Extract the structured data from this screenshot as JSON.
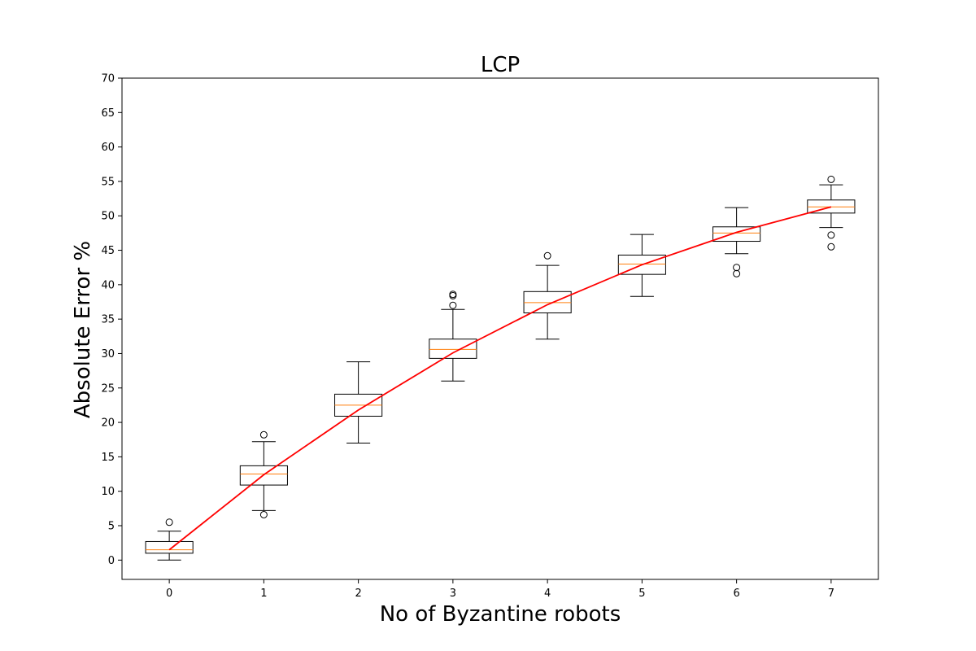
{
  "chart_data": {
    "type": "box",
    "title": "LCP",
    "xlabel": "No of Byzantine robots",
    "ylabel": "Absolute Error %",
    "categories": [
      "0",
      "1",
      "2",
      "3",
      "4",
      "5",
      "6",
      "7"
    ],
    "ylim": [
      -2.8,
      70
    ],
    "yticks": [
      0,
      5,
      10,
      15,
      20,
      25,
      30,
      35,
      40,
      45,
      50,
      55,
      60,
      65,
      70
    ],
    "ytick_labels": [
      "0",
      "5",
      "10",
      "15",
      "20",
      "25",
      "30",
      "35",
      "40",
      "45",
      "50",
      "55",
      "60",
      "65",
      "70"
    ],
    "grid": false,
    "boxes": [
      {
        "x": "0",
        "whisker_low": 0.0,
        "q1": 1.0,
        "median": 1.5,
        "q3": 2.7,
        "whisker_high": 4.2,
        "outliers": [
          5.5
        ]
      },
      {
        "x": "1",
        "whisker_low": 7.2,
        "q1": 10.9,
        "median": 12.5,
        "q3": 13.7,
        "whisker_high": 17.2,
        "outliers": [
          18.2,
          6.6
        ]
      },
      {
        "x": "2",
        "whisker_low": 17.0,
        "q1": 20.9,
        "median": 22.5,
        "q3": 24.1,
        "whisker_high": 28.8,
        "outliers": []
      },
      {
        "x": "3",
        "whisker_low": 26.0,
        "q1": 29.3,
        "median": 30.6,
        "q3": 32.1,
        "whisker_high": 36.4,
        "outliers": [
          37.0,
          38.4,
          38.6
        ]
      },
      {
        "x": "4",
        "whisker_low": 32.1,
        "q1": 35.9,
        "median": 37.4,
        "q3": 39.0,
        "whisker_high": 42.8,
        "outliers": [
          44.2
        ]
      },
      {
        "x": "5",
        "whisker_low": 38.3,
        "q1": 41.5,
        "median": 43.0,
        "q3": 44.3,
        "whisker_high": 47.3,
        "outliers": []
      },
      {
        "x": "6",
        "whisker_low": 44.5,
        "q1": 46.3,
        "median": 47.5,
        "q3": 48.4,
        "whisker_high": 51.2,
        "outliers": [
          42.5,
          41.6
        ]
      },
      {
        "x": "7",
        "whisker_low": 48.3,
        "q1": 50.4,
        "median": 51.3,
        "q3": 52.3,
        "whisker_high": 54.5,
        "outliers": [
          55.3,
          47.2,
          45.5
        ]
      }
    ],
    "trend_line": {
      "color": "#ff0000",
      "x": [
        "0",
        "1",
        "2",
        "3",
        "4",
        "5",
        "6",
        "7"
      ],
      "values": [
        1.5,
        12.4,
        21.8,
        30.1,
        37.1,
        42.9,
        47.6,
        51.3
      ]
    },
    "colors": {
      "box": "#000000",
      "median": "#ff7f0e",
      "trend": "#ff0000"
    }
  }
}
